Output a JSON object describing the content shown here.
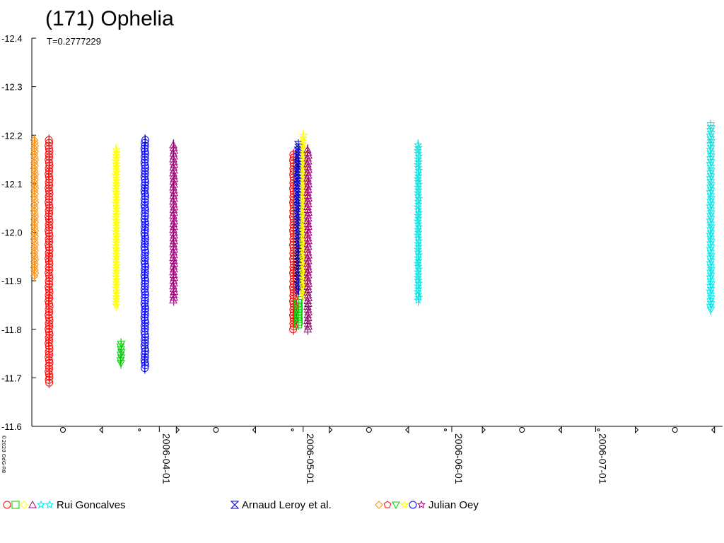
{
  "title": "(171) Ophelia",
  "subtitle": "T=0.2777229",
  "copyright": "©2020 OdG-R8",
  "chart_data": {
    "type": "scatter",
    "title": "(171) Ophelia",
    "y_inverted": true,
    "ylim": [
      -12.4,
      -11.6
    ],
    "yticks": [
      "-12.4",
      "-12.3",
      "-12.2",
      "-12.1",
      "-12.0",
      "-11.9",
      "-11.8",
      "-11.7",
      "-11.6"
    ],
    "xlim": [
      "2006-03-06",
      "2006-07-26"
    ],
    "xticks": [
      "2006-04-01",
      "2006-05-01",
      "2006-06-01",
      "2006-07-01"
    ],
    "series": [
      {
        "date": "2006-03-06",
        "color": "#ff8c00",
        "marker": "diamond",
        "ymin": -12.19,
        "ymax": -11.91,
        "observer": "Julian Oey"
      },
      {
        "date": "2006-03-09",
        "color": "#ff0000",
        "marker": "circle",
        "ymin": -12.19,
        "ymax": -11.69,
        "observer": "Rui Goncalves"
      },
      {
        "date": "2006-03-23",
        "color": "#ffff00",
        "marker": "star",
        "ymin": -12.17,
        "ymax": -11.85,
        "observer": "Julian Oey"
      },
      {
        "date": "2006-03-24",
        "color": "#00cc00",
        "marker": "triangle-down",
        "ymin": -11.77,
        "ymax": -11.73,
        "observer": "Julian Oey"
      },
      {
        "date": "2006-03-29",
        "color": "#0000ff",
        "marker": "circle",
        "ymin": -12.19,
        "ymax": -11.72,
        "observer": "Julian Oey"
      },
      {
        "date": "2006-04-04",
        "color": "#a0007a",
        "marker": "triangle",
        "ymin": -12.18,
        "ymax": -11.86,
        "observer": "Julian Oey"
      },
      {
        "date": "2006-04-29",
        "color": "#ff0000",
        "marker": "circle",
        "ymin": -12.16,
        "ymax": -11.8,
        "observer": "Rui Goncalves"
      },
      {
        "date": "2006-04-30",
        "color": "#0000c0",
        "marker": "hourglass",
        "ymin": -12.18,
        "ymax": -11.88,
        "observer": "Arnaud Leroy et al."
      },
      {
        "date": "2006-04-30",
        "color": "#00cc00",
        "marker": "square",
        "ymin": -11.86,
        "ymax": -11.81,
        "observer": "Rui Goncalves"
      },
      {
        "date": "2006-05-01",
        "color": "#ffff00",
        "marker": "star",
        "ymin": -12.2,
        "ymax": -11.87,
        "observer": "Rui Goncalves"
      },
      {
        "date": "2006-05-02",
        "color": "#a0007a",
        "marker": "triangle",
        "ymin": -12.17,
        "ymax": -11.8,
        "observer": "Rui Goncalves"
      },
      {
        "date": "2006-05-25",
        "color": "#00e8e8",
        "marker": "star",
        "ymin": -12.18,
        "ymax": -11.86,
        "observer": "Rui Goncalves"
      },
      {
        "date": "2006-07-25",
        "color": "#00e8e8",
        "marker": "triangle-down",
        "ymin": -12.22,
        "ymax": -11.84,
        "observer": "Rui Goncalves"
      }
    ]
  },
  "legend": [
    {
      "label": "Rui Goncalves",
      "symbols": [
        {
          "shape": "circle",
          "color": "#ff0000"
        },
        {
          "shape": "square",
          "color": "#00cc00"
        },
        {
          "shape": "diamond",
          "color": "#ffff00"
        },
        {
          "shape": "triangle",
          "color": "#a0007a"
        },
        {
          "shape": "star",
          "color": "#00e8e8"
        },
        {
          "shape": "star",
          "color": "#00e8e8"
        }
      ]
    },
    {
      "label": "Arnaud Leroy et al.",
      "symbols": [
        {
          "shape": "hourglass",
          "color": "#0000c0"
        }
      ]
    },
    {
      "label": "Julian Oey",
      "symbols": [
        {
          "shape": "diamond",
          "color": "#ff8c00"
        },
        {
          "shape": "pentagon",
          "color": "#ff0000"
        },
        {
          "shape": "triangle-down",
          "color": "#00cc00"
        },
        {
          "shape": "star",
          "color": "#ffff00"
        },
        {
          "shape": "circle",
          "color": "#0000ff"
        },
        {
          "shape": "star",
          "color": "#a0007a"
        }
      ]
    }
  ]
}
